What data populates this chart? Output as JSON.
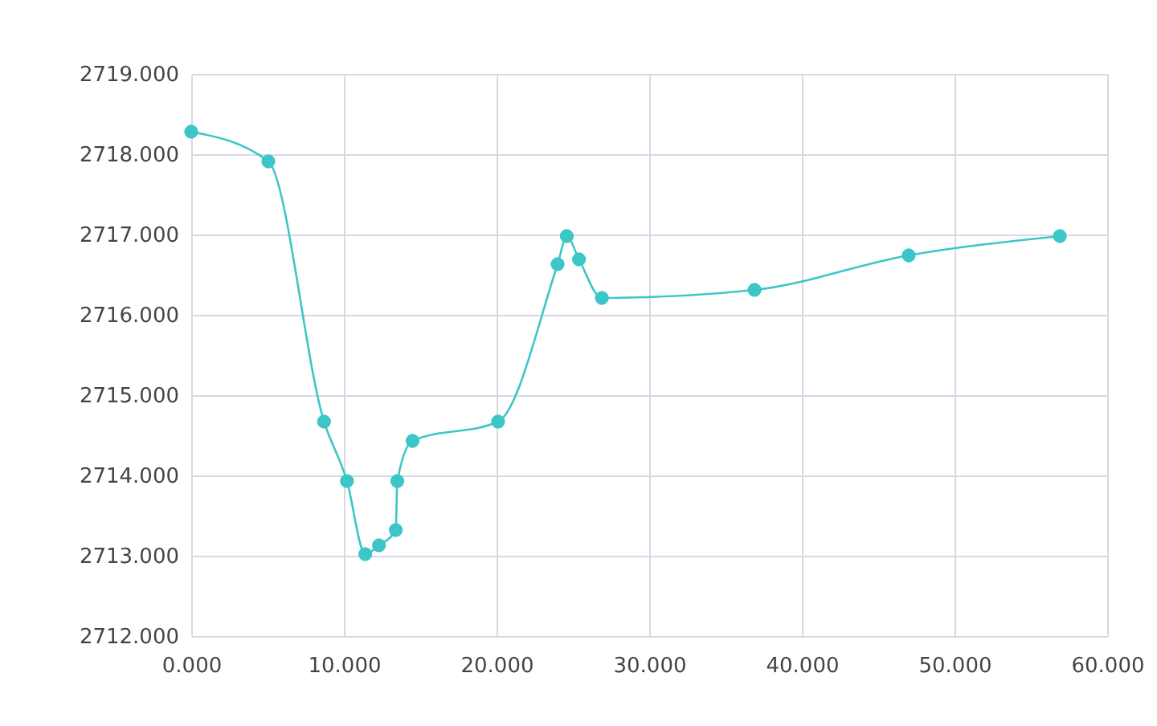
{
  "chart_data": {
    "type": "line",
    "marker": "circle",
    "grid": true,
    "x": [
      0,
      5.05,
      8.7,
      10.2,
      11.4,
      12.3,
      13.4,
      13.5,
      14.5,
      20.1,
      24.0,
      24.6,
      25.4,
      26.9,
      36.9,
      47.0,
      56.9
    ],
    "series": [
      {
        "color": "#3cc6c8",
        "values": [
          2718.28,
          2717.91,
          2714.67,
          2713.93,
          2713.02,
          2713.13,
          2713.32,
          2713.93,
          2714.43,
          2714.67,
          2716.63,
          2716.98,
          2716.69,
          2716.21,
          2716.31,
          2716.74,
          2716.98
        ]
      }
    ],
    "xlim": [
      0,
      60
    ],
    "ylim": [
      2712,
      2719
    ],
    "xticks": [
      {
        "value": 0,
        "label": "0.000"
      },
      {
        "value": 10,
        "label": "10.000"
      },
      {
        "value": 20,
        "label": "20.000"
      },
      {
        "value": 30,
        "label": "30.000"
      },
      {
        "value": 40,
        "label": "40.000"
      },
      {
        "value": 50,
        "label": "50.000"
      },
      {
        "value": 60,
        "label": "60.000"
      }
    ],
    "yticks": [
      {
        "value": 2712,
        "label": "2712.000"
      },
      {
        "value": 2713,
        "label": "2713.000"
      },
      {
        "value": 2714,
        "label": "2714.000"
      },
      {
        "value": 2715,
        "label": "2715.000"
      },
      {
        "value": 2716,
        "label": "2716.000"
      },
      {
        "value": 2717,
        "label": "2717.000"
      },
      {
        "value": 2718,
        "label": "2718.000"
      },
      {
        "value": 2719,
        "label": "2719.000"
      }
    ]
  }
}
